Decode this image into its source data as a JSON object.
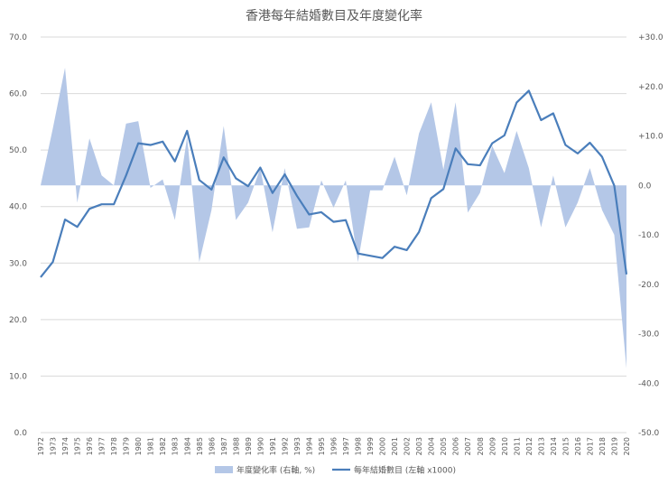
{
  "chart_data": {
    "type": "line+area",
    "title": "香港每年結婚數目及年度變化率",
    "categories": [
      "1972",
      "1973",
      "1974",
      "1975",
      "1976",
      "1977",
      "1978",
      "1979",
      "1980",
      "1981",
      "1982",
      "1983",
      "1984",
      "1985",
      "1986",
      "1987",
      "1988",
      "1989",
      "1990",
      "1991",
      "1992",
      "1993",
      "1994",
      "1995",
      "1996",
      "1997",
      "1998",
      "1999",
      "2000",
      "2001",
      "2002",
      "2003",
      "2004",
      "2005",
      "2006",
      "2007",
      "2008",
      "2009",
      "2010",
      "2011",
      "2012",
      "2013",
      "2014",
      "2015",
      "2016",
      "2017",
      "2018",
      "2019",
      "2020"
    ],
    "left_axis": {
      "min": 0,
      "max": 70,
      "step": 10,
      "tick_labels": [
        "0.0",
        "10.0",
        "20.0",
        "30.0",
        "40.0",
        "50.0",
        "60.0",
        "70.0"
      ]
    },
    "right_axis": {
      "min": -50,
      "max": 30,
      "step": 10,
      "tick_labels": [
        "-50.0",
        "-40.0",
        "-30.0",
        "-20.0",
        "-10.0",
        "0.0",
        "+10.0",
        "+20.0",
        "+30.0"
      ]
    },
    "series": [
      {
        "name": "年度變化率 (右軸, %)",
        "axis": "right",
        "type": "area",
        "color": "#b4c7e7",
        "values": [
          0.0,
          11.5,
          23.8,
          -3.5,
          9.5,
          2.0,
          0.0,
          12.5,
          13.0,
          -0.5,
          1.2,
          -7.0,
          9.8,
          -15.5,
          -5.0,
          12.0,
          -7.0,
          -3.5,
          3.5,
          -9.5,
          3.5,
          -8.8,
          -8.5,
          1.0,
          -4.5,
          1.0,
          -15.5,
          -1.0,
          -1.0,
          5.8,
          -2.0,
          10.5,
          16.8,
          3.2,
          16.8,
          -5.5,
          -1.5,
          8.0,
          2.5,
          11.0,
          3.5,
          -8.5,
          2.0,
          -8.5,
          -3.5,
          3.5,
          -5.0,
          -10.0,
          -37.0
        ]
      },
      {
        "name": "每年結婚數目 (左軸 x1000)",
        "axis": "left",
        "type": "line",
        "color": "#4a7ebb",
        "values": [
          27.5,
          30.2,
          37.7,
          36.4,
          39.6,
          40.4,
          40.4,
          45.5,
          51.2,
          50.9,
          51.5,
          48.0,
          53.4,
          44.7,
          43.0,
          48.7,
          45.0,
          43.6,
          46.9,
          42.4,
          45.7,
          41.9,
          38.6,
          39.0,
          37.3,
          37.6,
          31.7,
          31.3,
          30.9,
          32.9,
          32.3,
          35.5,
          41.5,
          43.1,
          50.3,
          47.5,
          47.3,
          51.2,
          52.6,
          58.4,
          60.5,
          55.3,
          56.5,
          50.9,
          49.4,
          51.3,
          48.8,
          43.7,
          28.0
        ]
      }
    ],
    "legend": {
      "position": "bottom"
    },
    "grid": {
      "horizontal": true,
      "vertical": false
    }
  }
}
